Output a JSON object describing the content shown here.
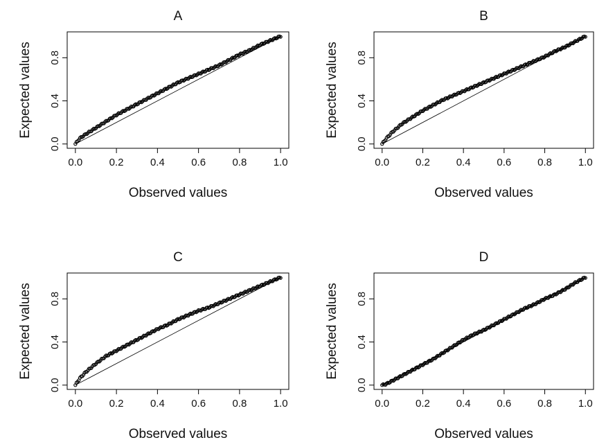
{
  "chart_data": [
    {
      "type": "scatter",
      "title": "A",
      "xlabel": "Observed values",
      "ylabel": "Expected values",
      "xlim": [
        0,
        1
      ],
      "ylim": [
        0,
        1
      ],
      "xticks": [
        "0.0",
        "0.2",
        "0.4",
        "0.6",
        "0.8",
        "1.0"
      ],
      "yticks": [
        "0.0",
        "0.4",
        "0.8"
      ],
      "reference_line": "y = x",
      "grid": false,
      "series": [
        {
          "x": [
            0.0,
            0.02,
            0.05,
            0.1,
            0.15,
            0.2,
            0.25,
            0.3,
            0.35,
            0.4,
            0.45,
            0.5,
            0.55,
            0.6,
            0.65,
            0.7,
            0.75,
            0.8,
            0.85,
            0.9,
            0.95,
            1.0
          ],
          "y": [
            0.0,
            0.05,
            0.09,
            0.15,
            0.21,
            0.27,
            0.32,
            0.37,
            0.42,
            0.47,
            0.52,
            0.57,
            0.61,
            0.65,
            0.69,
            0.73,
            0.78,
            0.83,
            0.87,
            0.92,
            0.96,
            1.0
          ]
        }
      ]
    },
    {
      "type": "scatter",
      "title": "B",
      "xlabel": "Observed values",
      "ylabel": "Expected values",
      "xlim": [
        0,
        1
      ],
      "ylim": [
        0,
        1
      ],
      "xticks": [
        "0.0",
        "0.2",
        "0.4",
        "0.6",
        "0.8",
        "1.0"
      ],
      "yticks": [
        "0.0",
        "0.4",
        "0.8"
      ],
      "reference_line": "y = x",
      "grid": false,
      "series": [
        {
          "x": [
            0.0,
            0.02,
            0.05,
            0.1,
            0.15,
            0.2,
            0.25,
            0.3,
            0.35,
            0.4,
            0.45,
            0.5,
            0.55,
            0.6,
            0.65,
            0.7,
            0.75,
            0.8,
            0.85,
            0.9,
            0.95,
            1.0
          ],
          "y": [
            0.0,
            0.05,
            0.11,
            0.19,
            0.25,
            0.31,
            0.36,
            0.41,
            0.45,
            0.49,
            0.53,
            0.57,
            0.61,
            0.65,
            0.69,
            0.73,
            0.77,
            0.81,
            0.86,
            0.9,
            0.95,
            1.0
          ]
        }
      ]
    },
    {
      "type": "scatter",
      "title": "C",
      "xlabel": "Observed values",
      "ylabel": "Expected values",
      "xlim": [
        0,
        1
      ],
      "ylim": [
        0,
        1
      ],
      "xticks": [
        "0.0",
        "0.2",
        "0.4",
        "0.6",
        "0.8",
        "1.0"
      ],
      "yticks": [
        "0.0",
        "0.4",
        "0.8"
      ],
      "reference_line": "y = x",
      "grid": false,
      "series": [
        {
          "x": [
            0.0,
            0.02,
            0.05,
            0.1,
            0.15,
            0.2,
            0.25,
            0.3,
            0.35,
            0.4,
            0.45,
            0.5,
            0.55,
            0.6,
            0.65,
            0.7,
            0.75,
            0.8,
            0.85,
            0.9,
            0.95,
            1.0
          ],
          "y": [
            0.0,
            0.06,
            0.12,
            0.2,
            0.27,
            0.32,
            0.37,
            0.42,
            0.47,
            0.52,
            0.56,
            0.61,
            0.65,
            0.69,
            0.72,
            0.76,
            0.8,
            0.84,
            0.88,
            0.92,
            0.96,
            1.0
          ]
        }
      ]
    },
    {
      "type": "scatter",
      "title": "D",
      "xlabel": "Observed values",
      "ylabel": "Expected values",
      "xlim": [
        0,
        1
      ],
      "ylim": [
        0,
        1
      ],
      "xticks": [
        "0.0",
        "0.2",
        "0.4",
        "0.6",
        "0.8",
        "1.0"
      ],
      "yticks": [
        "0.0",
        "0.4",
        "0.8"
      ],
      "reference_line": "y = x",
      "grid": false,
      "series": [
        {
          "x": [
            0.0,
            0.02,
            0.05,
            0.1,
            0.15,
            0.2,
            0.25,
            0.3,
            0.35,
            0.4,
            0.45,
            0.5,
            0.55,
            0.6,
            0.65,
            0.7,
            0.75,
            0.8,
            0.85,
            0.9,
            0.95,
            1.0
          ],
          "y": [
            0.0,
            0.01,
            0.04,
            0.09,
            0.14,
            0.19,
            0.24,
            0.3,
            0.36,
            0.42,
            0.47,
            0.51,
            0.56,
            0.61,
            0.66,
            0.71,
            0.75,
            0.8,
            0.84,
            0.89,
            0.95,
            1.0
          ]
        }
      ]
    }
  ]
}
